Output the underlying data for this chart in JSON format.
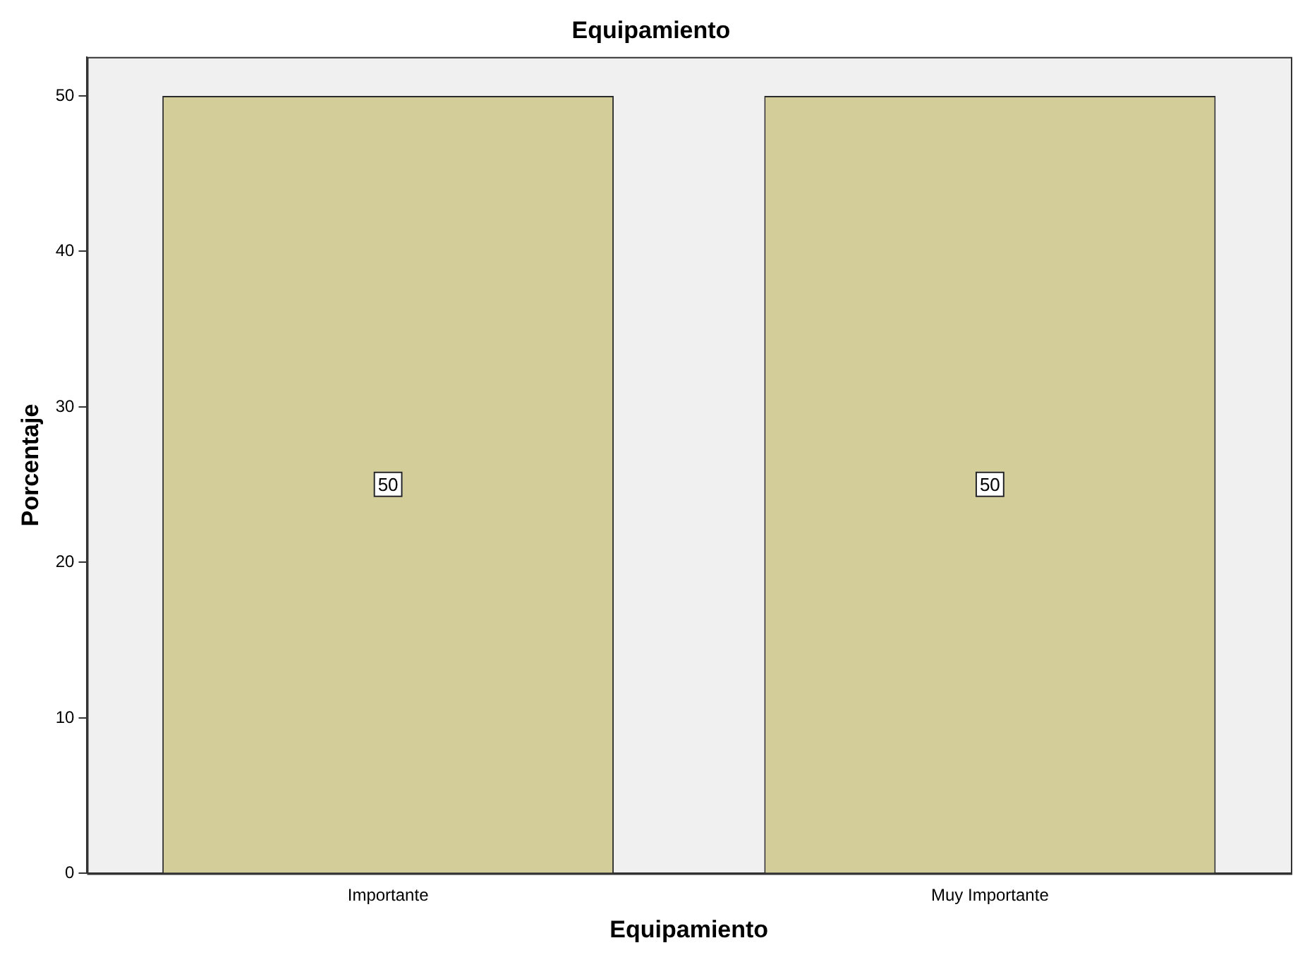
{
  "chart_data": {
    "type": "bar",
    "title": "Equipamiento",
    "xlabel": "Equipamiento",
    "ylabel": "Porcentaje",
    "categories": [
      "Importante",
      "Muy Importante"
    ],
    "values": [
      50,
      50
    ],
    "color": "#d3cd99",
    "ylim": [
      0,
      52.5
    ],
    "yticks": [
      0,
      10,
      20,
      30,
      40,
      50
    ],
    "grid": false,
    "legend": false,
    "data_labels": true
  }
}
